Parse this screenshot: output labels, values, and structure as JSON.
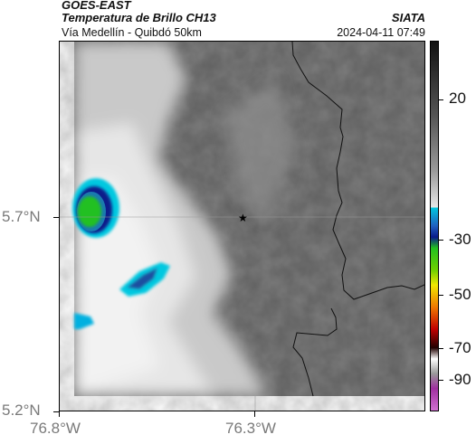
{
  "header": {
    "satellite": "GOES-EAST",
    "product": "Temperatura de Brillo CH13",
    "agency": "SIATA",
    "region": "Vía Medellín - Quibdó 50km",
    "timestamp": "2024-04-11 07:49"
  },
  "map": {
    "lat_labels": [
      "5.7°N",
      "5.2°N"
    ],
    "lon_labels": [
      "76.8°W",
      "76.3°W"
    ],
    "marker": "station-star"
  },
  "colorbar": {
    "labels": [
      "20",
      "-30",
      "-50",
      "-70",
      "-90"
    ],
    "colors": {
      "warm_top": "#111111",
      "warm_bottom": "#e8e8e8",
      "cyan": "#00c8e0",
      "blue": "#0a1a8a",
      "green": "#22c020",
      "yellow": "#f0e800",
      "orange": "#f07800",
      "red": "#c00000",
      "dark": "#200000",
      "purple": "#a030a0"
    }
  }
}
